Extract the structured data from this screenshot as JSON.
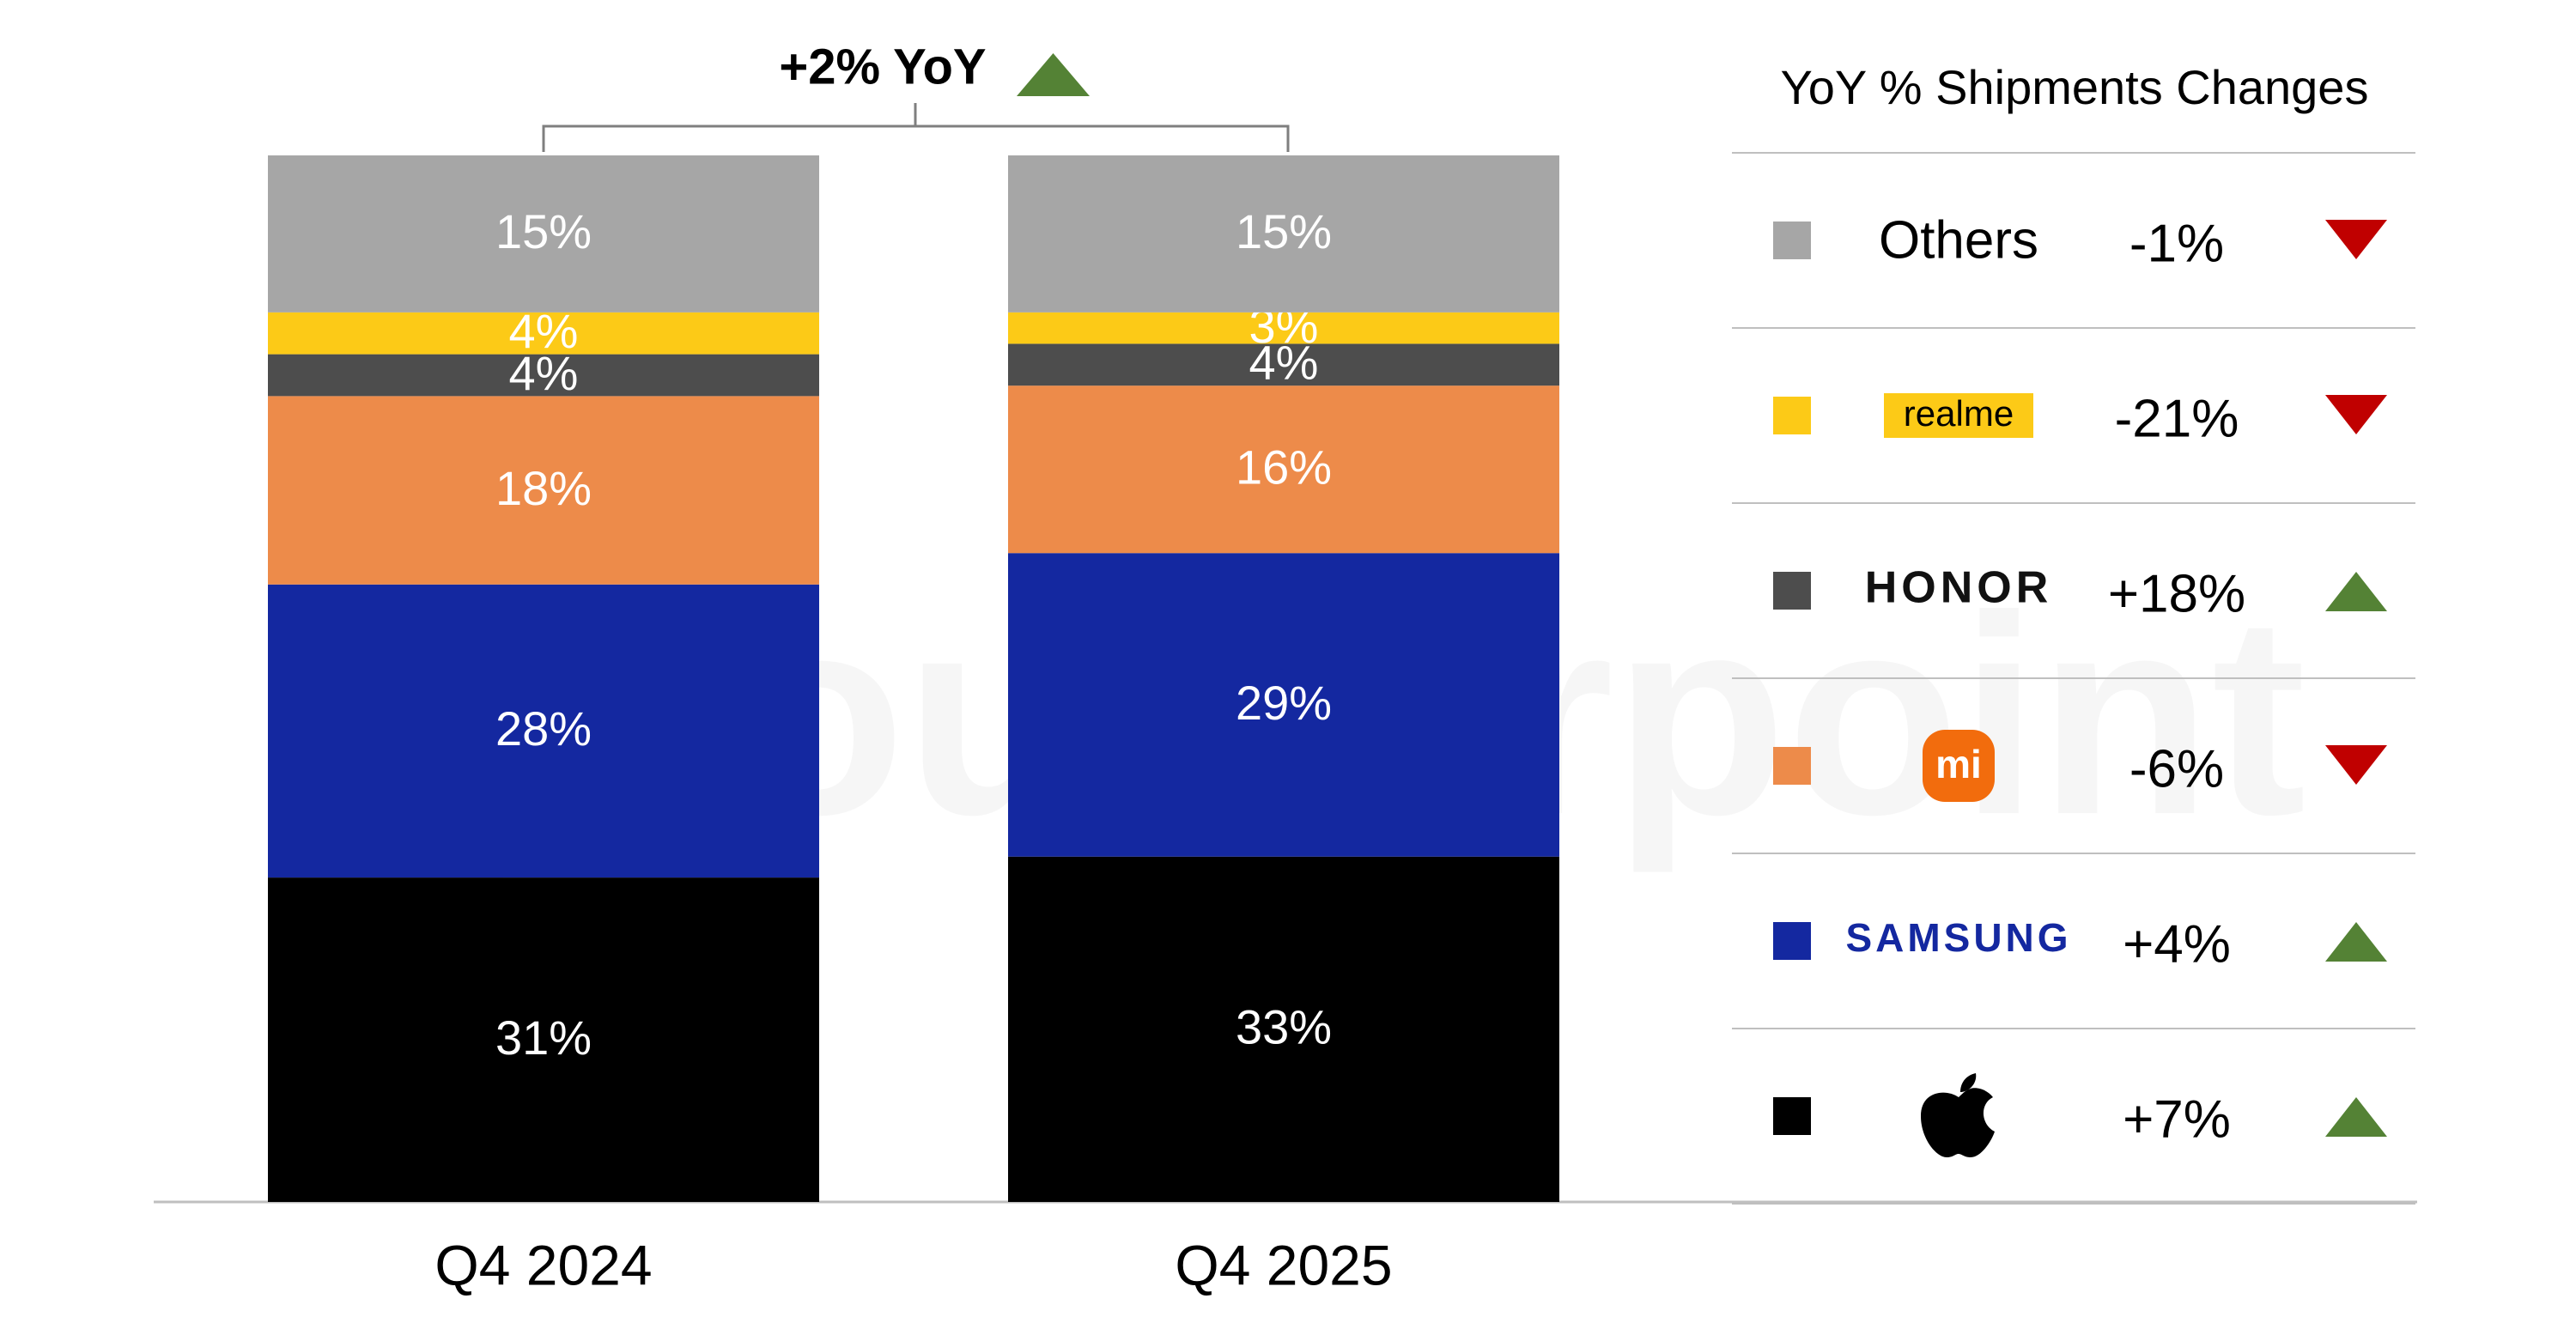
{
  "chart_data": {
    "type": "stacked_bar",
    "annotation": "+2% YoY",
    "legend_title": "YoY % Shipments Changes",
    "watermark": "Counterpoint",
    "categories": [
      "Q4 2024",
      "Q4 2025"
    ],
    "ylim": [
      0,
      100
    ],
    "series": [
      {
        "color": "#000000",
        "values": [
          31,
          33
        ],
        "value_labels": [
          "31%",
          "33%"
        ],
        "change": {
          "value": 7,
          "label": "+7%"
        }
      },
      {
        "name": "SAMSUNG",
        "color": "#1428a0",
        "values": [
          28,
          29
        ],
        "value_labels": [
          "28%",
          "29%"
        ],
        "change": {
          "value": 4,
          "label": "+4%"
        }
      },
      {
        "name": "mi",
        "color": "#ed8b4a",
        "values": [
          18,
          16
        ],
        "value_labels": [
          "18%",
          "16%"
        ],
        "change": {
          "value": -6,
          "label": "-6%"
        }
      },
      {
        "name": "HONOR",
        "color": "#4d4d4d",
        "values": [
          4,
          4
        ],
        "value_labels": [
          "4%",
          "4%"
        ],
        "change": {
          "value": 18,
          "label": "+18%"
        }
      },
      {
        "name": "realme",
        "color": "#fcca17",
        "values": [
          4,
          3
        ],
        "value_labels": [
          "4%",
          "3%"
        ],
        "change": {
          "value": -21,
          "label": "-21%"
        }
      },
      {
        "name": "Others",
        "color": "#a6a6a6",
        "values": [
          15,
          15
        ],
        "value_labels": [
          "15%",
          "15%"
        ],
        "change": {
          "value": -1,
          "label": "-1%"
        }
      }
    ]
  }
}
